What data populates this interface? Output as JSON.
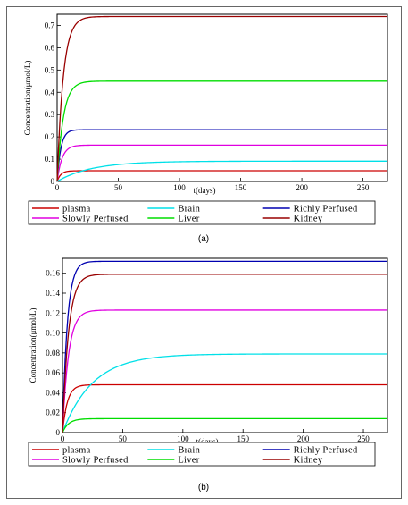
{
  "chart_data": [
    {
      "type": "line",
      "xlabel": "t(days)",
      "ylabel": "Concentration(μmol/L)",
      "xlim": [
        0,
        270
      ],
      "ylim": [
        0,
        0.75
      ],
      "xticks": [
        "0",
        "50",
        "100",
        "150",
        "200",
        "250"
      ],
      "yticks": [
        "0",
        "0.1",
        "0.2",
        "0.3",
        "0.4",
        "0.5",
        "0.6",
        "0.7"
      ],
      "legend_position": "bottom",
      "caption": "(a)",
      "series": [
        {
          "name": "plasma",
          "color": "#cc0000",
          "steady_state": 0.048,
          "time_constant_days": 3
        },
        {
          "name": "Brain",
          "color": "#00e0e8",
          "steady_state": 0.091,
          "time_constant_days": 28
        },
        {
          "name": "Richly Perfused",
          "color": "#0000b0",
          "steady_state": 0.232,
          "time_constant_days": 3
        },
        {
          "name": "Slowly Perfused",
          "color": "#e000e0",
          "steady_state": 0.163,
          "time_constant_days": 4
        },
        {
          "name": "Liver",
          "color": "#00dd00",
          "steady_state": 0.45,
          "time_constant_days": 5
        },
        {
          "name": "Kidney",
          "color": "#990000",
          "steady_state": 0.74,
          "time_constant_days": 5
        }
      ]
    },
    {
      "type": "line",
      "xlabel": "t(days)",
      "ylabel": "Concentration(μmol/L)",
      "xlim": [
        0,
        270
      ],
      "ylim": [
        0,
        0.175
      ],
      "xticks": [
        "0",
        "50",
        "100",
        "150",
        "200",
        "250"
      ],
      "yticks": [
        "0",
        "0.02",
        "0.04",
        "0.06",
        "0.08",
        "0.10",
        "0.12",
        "0.14",
        "0.16"
      ],
      "legend_position": "bottom",
      "caption": "(b)",
      "series": [
        {
          "name": "plasma",
          "color": "#cc0000",
          "steady_state": 0.048,
          "time_constant_days": 4
        },
        {
          "name": "Brain",
          "color": "#00e0e8",
          "steady_state": 0.079,
          "time_constant_days": 25
        },
        {
          "name": "Richly Perfused",
          "color": "#0000b0",
          "steady_state": 0.172,
          "time_constant_days": 4
        },
        {
          "name": "Slowly Perfused",
          "color": "#e000e0",
          "steady_state": 0.123,
          "time_constant_days": 5
        },
        {
          "name": "Liver",
          "color": "#00dd00",
          "steady_state": 0.014,
          "time_constant_days": 5
        },
        {
          "name": "Kidney",
          "color": "#990000",
          "steady_state": 0.159,
          "time_constant_days": 5
        }
      ]
    }
  ]
}
